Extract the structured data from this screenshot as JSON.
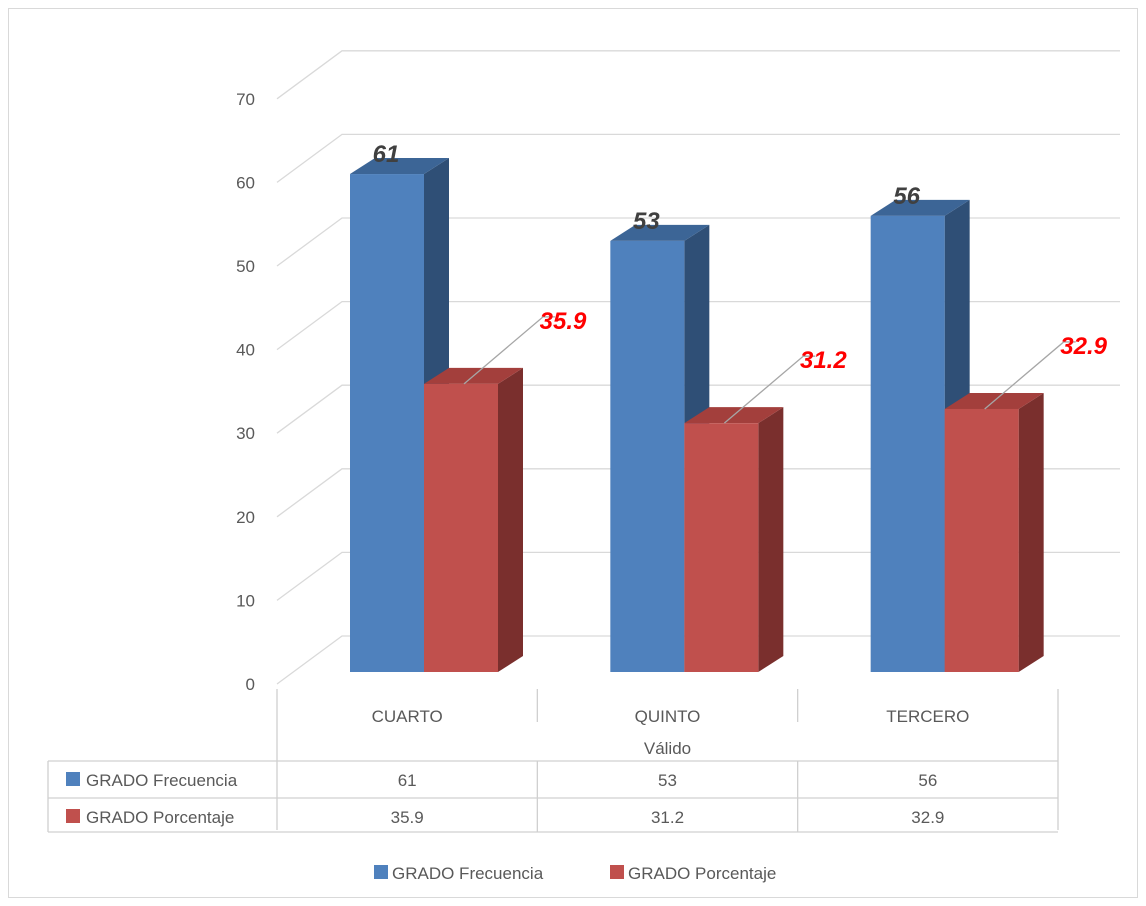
{
  "chart_data": {
    "type": "bar",
    "categories": [
      "CUARTO",
      "QUINTO",
      "TERCERO"
    ],
    "group_label": "Válido",
    "series": [
      {
        "name": "GRADO Frecuencia",
        "values": [
          61,
          53,
          56
        ],
        "color": "#4f81bd",
        "side_color": "#2f4f76",
        "top_color": "#3c6596",
        "label_color": "#404040",
        "data_labels": [
          "61",
          "53",
          "56"
        ]
      },
      {
        "name": "GRADO Porcentaje",
        "values": [
          35.9,
          31.2,
          32.9
        ],
        "color": "#c0504d",
        "side_color": "#7a2f2d",
        "top_color": "#a33f3c",
        "label_color": "#ff0000",
        "data_labels": [
          "35.9",
          "31.2",
          "32.9"
        ]
      }
    ],
    "y_ticks": [
      0,
      10,
      20,
      30,
      40,
      50,
      60,
      70
    ],
    "ylim": [
      0,
      70
    ],
    "grid": true,
    "legend_position": "bottom",
    "data_table": {
      "rows": [
        {
          "label": "GRADO Frecuencia",
          "values": [
            "61",
            "53",
            "56"
          ]
        },
        {
          "label": "GRADO Porcentaje",
          "values": [
            "35.9",
            "31.2",
            "32.9"
          ]
        }
      ]
    }
  }
}
